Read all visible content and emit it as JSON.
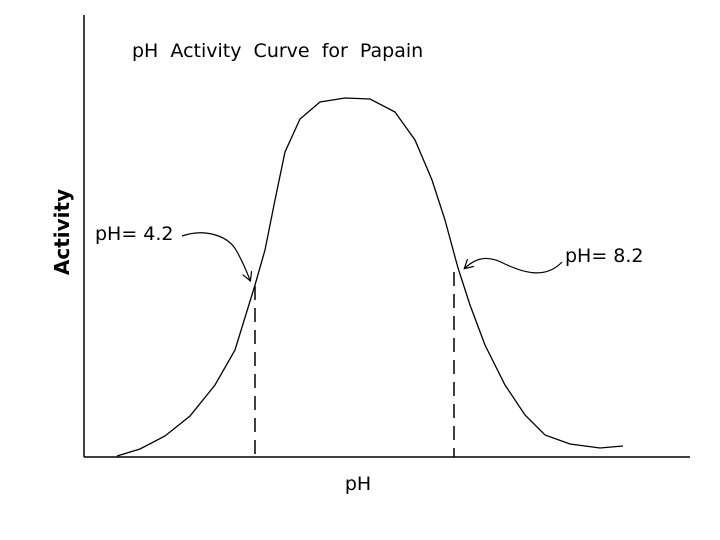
{
  "title": "pH  Activity  Curve  for  Papain",
  "y_axis_label": "Activity",
  "x_axis_label": "pH",
  "annotations": [
    "pH= 4.2",
    "pH= 8.2"
  ]
}
